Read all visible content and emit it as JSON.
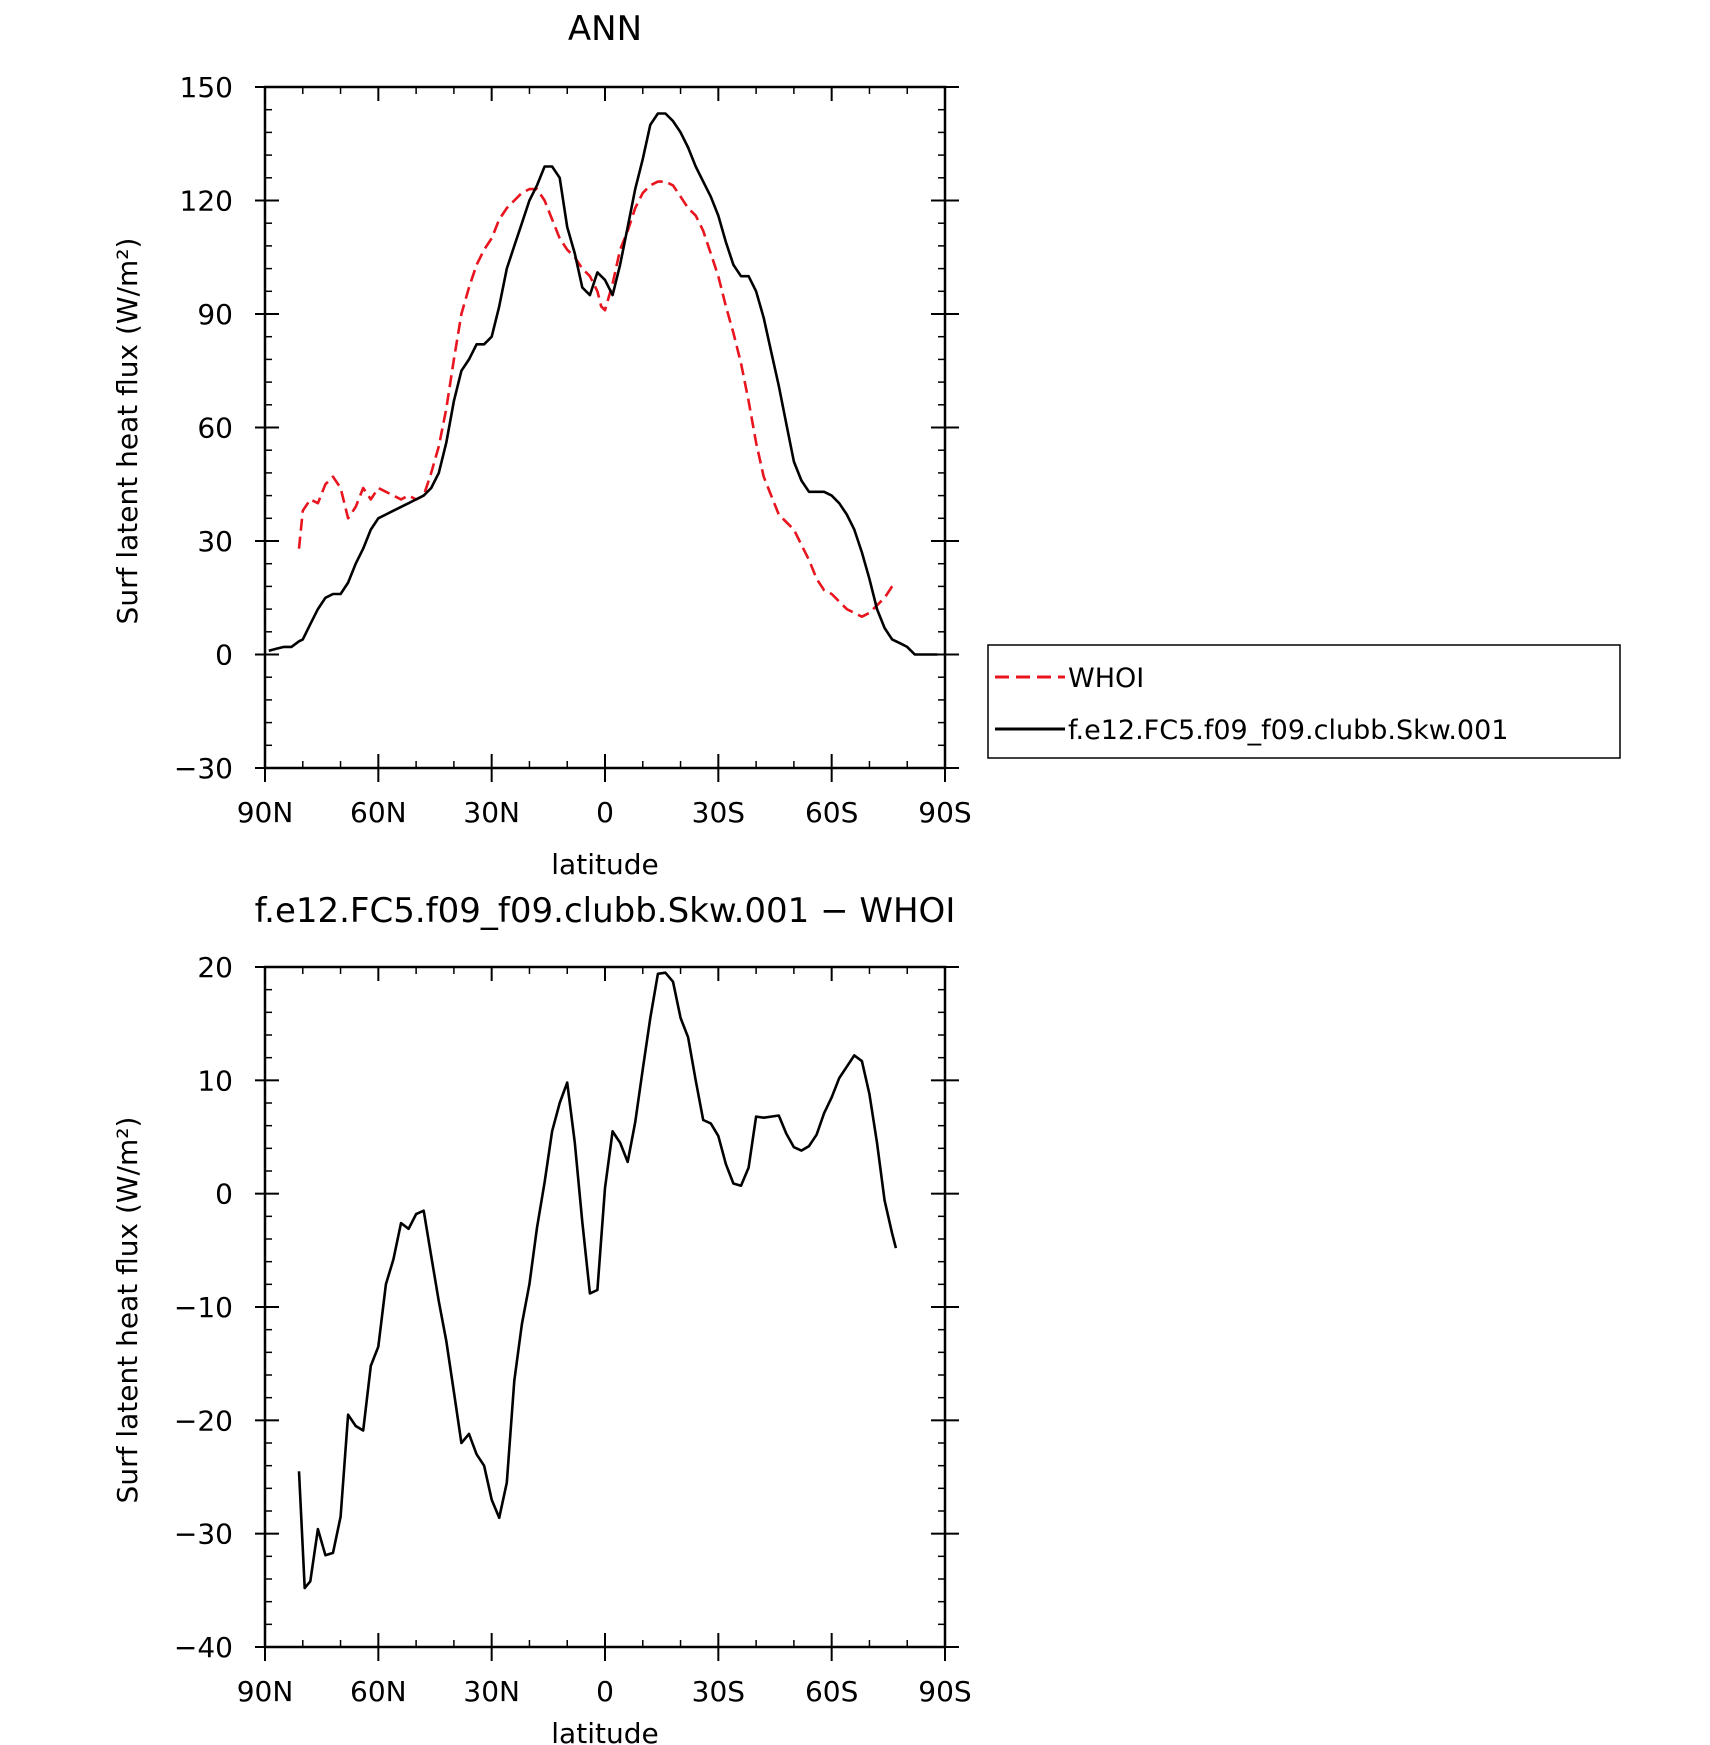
{
  "chart_data": [
    {
      "type": "line",
      "title": "ANN",
      "xlabel": "latitude",
      "ylabel": "Surf latent heat flux (W/m²)",
      "xlim": [
        90,
        -90
      ],
      "ylim": [
        -30,
        150
      ],
      "x_ticks": [
        {
          "value": 90,
          "label": "90N"
        },
        {
          "value": 60,
          "label": "60N"
        },
        {
          "value": 30,
          "label": "30N"
        },
        {
          "value": 0,
          "label": "0"
        },
        {
          "value": -30,
          "label": "30S"
        },
        {
          "value": -60,
          "label": "60S"
        },
        {
          "value": -90,
          "label": "90S"
        }
      ],
      "y_ticks": [
        {
          "value": 150,
          "label": "150"
        },
        {
          "value": 120,
          "label": "120"
        },
        {
          "value": 90,
          "label": "90"
        },
        {
          "value": 60,
          "label": "60"
        },
        {
          "value": 30,
          "label": "30"
        },
        {
          "value": 0,
          "label": "0"
        },
        {
          "value": -30,
          "label": "−30"
        }
      ],
      "legend": "right",
      "series": [
        {
          "name": "WHOI",
          "color": "#e8141e",
          "dash": true,
          "x": [
            81,
            80,
            78,
            76,
            74,
            72,
            70,
            68,
            66,
            64,
            62,
            60,
            58,
            56,
            54,
            52,
            50,
            48,
            46,
            44,
            42,
            40,
            38,
            36,
            34,
            32,
            30,
            28,
            26,
            24,
            22,
            20,
            18,
            16,
            14,
            12,
            10,
            8,
            6,
            4,
            2,
            1,
            0,
            -2,
            -4,
            -6,
            -8,
            -10,
            -12,
            -14,
            -16,
            -18,
            -20,
            -22,
            -24,
            -26,
            -28,
            -30,
            -32,
            -34,
            -36,
            -38,
            -40,
            -42,
            -44,
            -46,
            -48,
            -50,
            -52,
            -54,
            -56,
            -58,
            -60,
            -62,
            -64,
            -66,
            -68,
            -70,
            -72,
            -74,
            -76,
            -77
          ],
          "y": [
            28,
            38,
            41,
            40,
            45,
            47,
            44,
            36,
            39,
            44,
            41,
            44,
            43,
            42,
            41,
            42,
            41,
            42,
            48,
            55,
            65,
            78,
            90,
            97,
            103,
            107,
            110,
            115,
            118,
            120,
            122,
            123,
            123,
            120,
            115,
            110,
            107,
            105,
            102,
            100,
            96,
            92,
            91,
            98,
            107,
            112,
            118,
            122,
            124,
            125,
            125,
            124,
            121,
            118,
            116,
            112,
            106,
            100,
            92,
            85,
            77,
            67,
            56,
            47,
            42,
            37,
            35,
            33,
            29,
            25,
            20,
            17,
            16,
            14,
            12,
            11,
            10,
            11,
            13,
            15,
            18,
            19
          ]
        },
        {
          "name": "f.e12.FC5.f09_f09.clubb.Skw.001",
          "color": "#000000",
          "dash": false,
          "x": [
            89,
            87,
            85,
            83,
            81,
            80,
            78,
            76,
            74,
            72,
            70,
            68,
            66,
            64,
            62,
            60,
            58,
            56,
            54,
            52,
            50,
            48,
            46,
            44,
            42,
            40,
            38,
            36,
            34,
            32,
            30,
            28,
            26,
            24,
            22,
            20,
            18,
            16,
            14,
            12,
            10,
            8,
            6,
            4,
            2,
            0,
            -2,
            -4,
            -6,
            -8,
            -10,
            -12,
            -14,
            -16,
            -18,
            -20,
            -22,
            -24,
            -26,
            -28,
            -30,
            -32,
            -34,
            -36,
            -38,
            -40,
            -42,
            -44,
            -46,
            -48,
            -50,
            -52,
            -54,
            -56,
            -58,
            -60,
            -62,
            -64,
            -66,
            -68,
            -70,
            -72,
            -74,
            -76,
            -78,
            -80,
            -82,
            -84,
            -86,
            -88
          ],
          "y": [
            1,
            1.5,
            2,
            2,
            3.5,
            4,
            8,
            12,
            15,
            16,
            16,
            19,
            24,
            28,
            33,
            36,
            37,
            38,
            39,
            40,
            41,
            42,
            44,
            48,
            56,
            67,
            75,
            78,
            82,
            82,
            84,
            92,
            102,
            108,
            114,
            120,
            124,
            129,
            129,
            126,
            113,
            106,
            97,
            95,
            101,
            99,
            95,
            103,
            113,
            123,
            131,
            140,
            143,
            143,
            141,
            138,
            134,
            129,
            125,
            121,
            116,
            109,
            103,
            100,
            100,
            96,
            89,
            80,
            71,
            61,
            51,
            46,
            43,
            43,
            43,
            42,
            40,
            37,
            33,
            27,
            20,
            12,
            7,
            4,
            3,
            2,
            0,
            0,
            0,
            0
          ]
        }
      ]
    },
    {
      "type": "line",
      "title": "f.e12.FC5.f09_f09.clubb.Skw.001 − WHOI",
      "xlabel": "latitude",
      "ylabel": "Surf latent heat flux (W/m²)",
      "xlim": [
        90,
        -90
      ],
      "ylim": [
        -40,
        20
      ],
      "x_ticks": [
        {
          "value": 90,
          "label": "90N"
        },
        {
          "value": 60,
          "label": "60N"
        },
        {
          "value": 30,
          "label": "30N"
        },
        {
          "value": 0,
          "label": "0"
        },
        {
          "value": -30,
          "label": "30S"
        },
        {
          "value": -60,
          "label": "60S"
        },
        {
          "value": -90,
          "label": "90S"
        }
      ],
      "y_ticks": [
        {
          "value": 20,
          "label": "20"
        },
        {
          "value": 10,
          "label": "10"
        },
        {
          "value": 0,
          "label": "0"
        },
        {
          "value": -10,
          "label": "−10"
        },
        {
          "value": -20,
          "label": "−20"
        },
        {
          "value": -30,
          "label": "−30"
        },
        {
          "value": -40,
          "label": "−40"
        }
      ],
      "series": [
        {
          "name": "",
          "color": "#000000",
          "dash": false,
          "x": [
            81,
            79.5,
            78,
            76,
            74,
            72,
            70,
            68,
            66,
            64,
            62,
            60,
            58,
            56,
            54,
            52,
            50,
            48,
            46,
            44,
            42,
            40,
            38,
            36,
            34,
            32,
            30,
            28,
            26,
            24,
            22,
            20,
            18,
            16,
            14,
            12,
            10,
            8,
            6,
            4,
            2,
            0,
            -2,
            -3,
            -4,
            -6,
            -8,
            -10,
            -12,
            -14,
            -16,
            -18,
            -20,
            -22,
            -24,
            -26,
            -28,
            -30,
            -32,
            -34,
            -36,
            -38,
            -40,
            -42,
            -44,
            -46,
            -48,
            -50,
            -52,
            -54,
            -56,
            -58,
            -60,
            -62,
            -64,
            -66,
            -68,
            -70,
            -72,
            -74,
            -76,
            -77
          ],
          "y": [
            -24.5,
            -34.8,
            -34.2,
            -29.6,
            -31.9,
            -31.7,
            -28.5,
            -19.5,
            -20.5,
            -20.9,
            -15.2,
            -13.5,
            -8,
            -5.8,
            -2.6,
            -3.1,
            -1.8,
            -1.5,
            -5.5,
            -9.5,
            -13,
            -17.5,
            -22,
            -21.2,
            -23,
            -24,
            -27,
            -28.6,
            -25.5,
            -16.5,
            -11.5,
            -8,
            -3,
            1,
            5.5,
            8,
            9.8,
            4.5,
            -2.5,
            -8.8,
            -8.5,
            0.5,
            5.5,
            5,
            4.5,
            2.8,
            6.3,
            11,
            15.5,
            19.4,
            19.5,
            18.7,
            15.5,
            13.8,
            10,
            6.5,
            6.2,
            5.1,
            2.6,
            0.9,
            0.7,
            2.3,
            6.8,
            6.7,
            6.8,
            6.9,
            5.3,
            4.1,
            3.8,
            4.2,
            5.2,
            7.1,
            8.5,
            10.2,
            11.2,
            12.2,
            11.7,
            8.8,
            4.5,
            -0.6,
            -3.5,
            -4.8
          ]
        }
      ]
    }
  ]
}
